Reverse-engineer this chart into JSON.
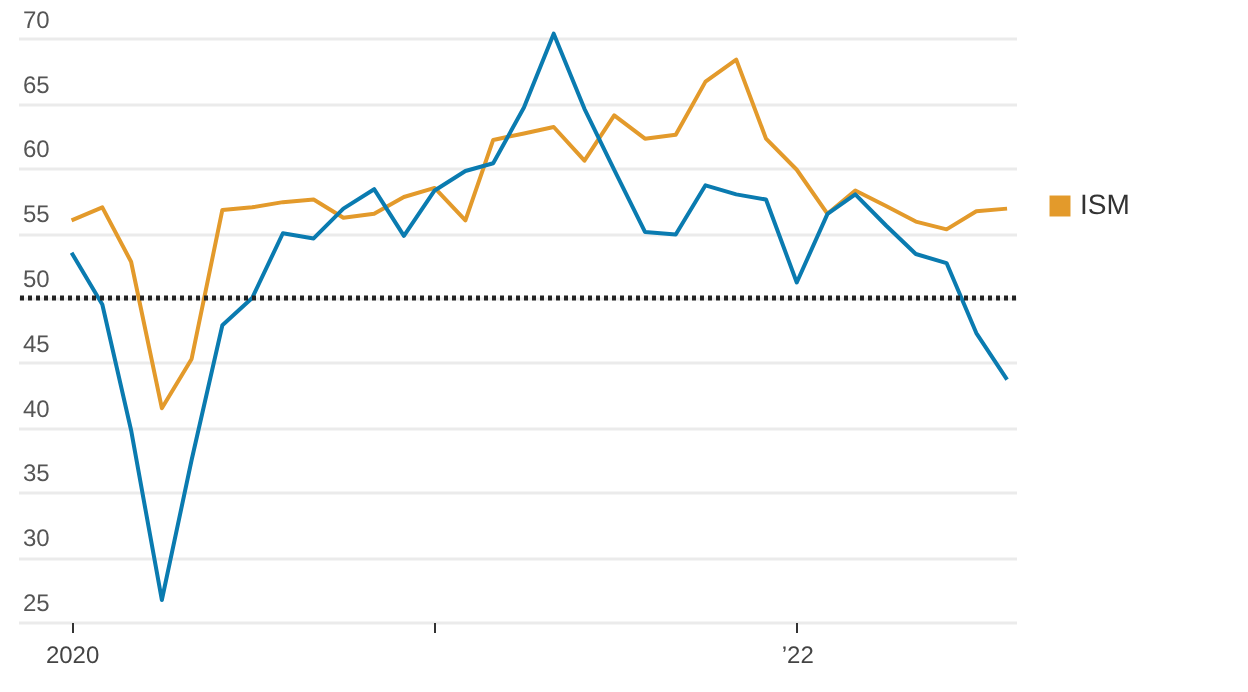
{
  "chart_data": {
    "type": "line",
    "x": [
      "2020-01",
      "2020-02",
      "2020-03",
      "2020-04",
      "2020-05",
      "2020-06",
      "2020-07",
      "2020-08",
      "2020-09",
      "2020-10",
      "2020-11",
      "2020-12",
      "2021-01",
      "2021-02",
      "2021-03",
      "2021-04",
      "2021-05",
      "2021-06",
      "2021-07",
      "2021-08",
      "2021-09",
      "2021-10",
      "2021-11",
      "2021-12",
      "2022-01",
      "2022-02",
      "2022-03",
      "2022-04",
      "2022-05",
      "2022-06",
      "2022-07",
      "2022-08"
    ],
    "series": [
      {
        "name": "ISM",
        "color": "#e39a2b",
        "values": [
          56,
          57,
          52.8,
          41.5,
          45.3,
          56.8,
          57,
          57.4,
          57.6,
          56.2,
          56.5,
          57.8,
          58.5,
          56,
          62.2,
          62.7,
          63.2,
          60.6,
          64.1,
          62.3,
          62.6,
          66.7,
          68.4,
          62.3,
          59.9,
          56.5,
          58.3,
          57.1,
          55.9,
          55.3,
          56.7,
          56.9
        ]
      },
      {
        "color": "#0a7bb0",
        "values": [
          53.5,
          49.5,
          39.8,
          26.7,
          37.5,
          47.9,
          50,
          55,
          54.6,
          56.9,
          58.4,
          54.8,
          58.3,
          59.8,
          60.4,
          64.7,
          70.4,
          64.6,
          59.9,
          55.1,
          54.9,
          58.7,
          58,
          57.6,
          51.2,
          56.5,
          58,
          55.6,
          53.4,
          52.7,
          47.3,
          43.7
        ]
      }
    ],
    "xlim": [
      "2019-11-08",
      "2022-08-10"
    ],
    "xticks": [
      {
        "value": "2020-01",
        "label": "2020"
      },
      {
        "value": "2021-01",
        "label": null
      },
      {
        "value": "2022-01",
        "label": "’22"
      }
    ],
    "ylim": [
      25,
      73
    ],
    "yticks": [
      25,
      30,
      35,
      40,
      45,
      50,
      55,
      60,
      65,
      70
    ],
    "ref_lines": [
      {
        "axis": "y",
        "value": 50,
        "color": "#222222",
        "line_style": "dotted"
      }
    ],
    "grid": "y",
    "legend": "right",
    "line_style": "solid",
    "marker": "none"
  }
}
